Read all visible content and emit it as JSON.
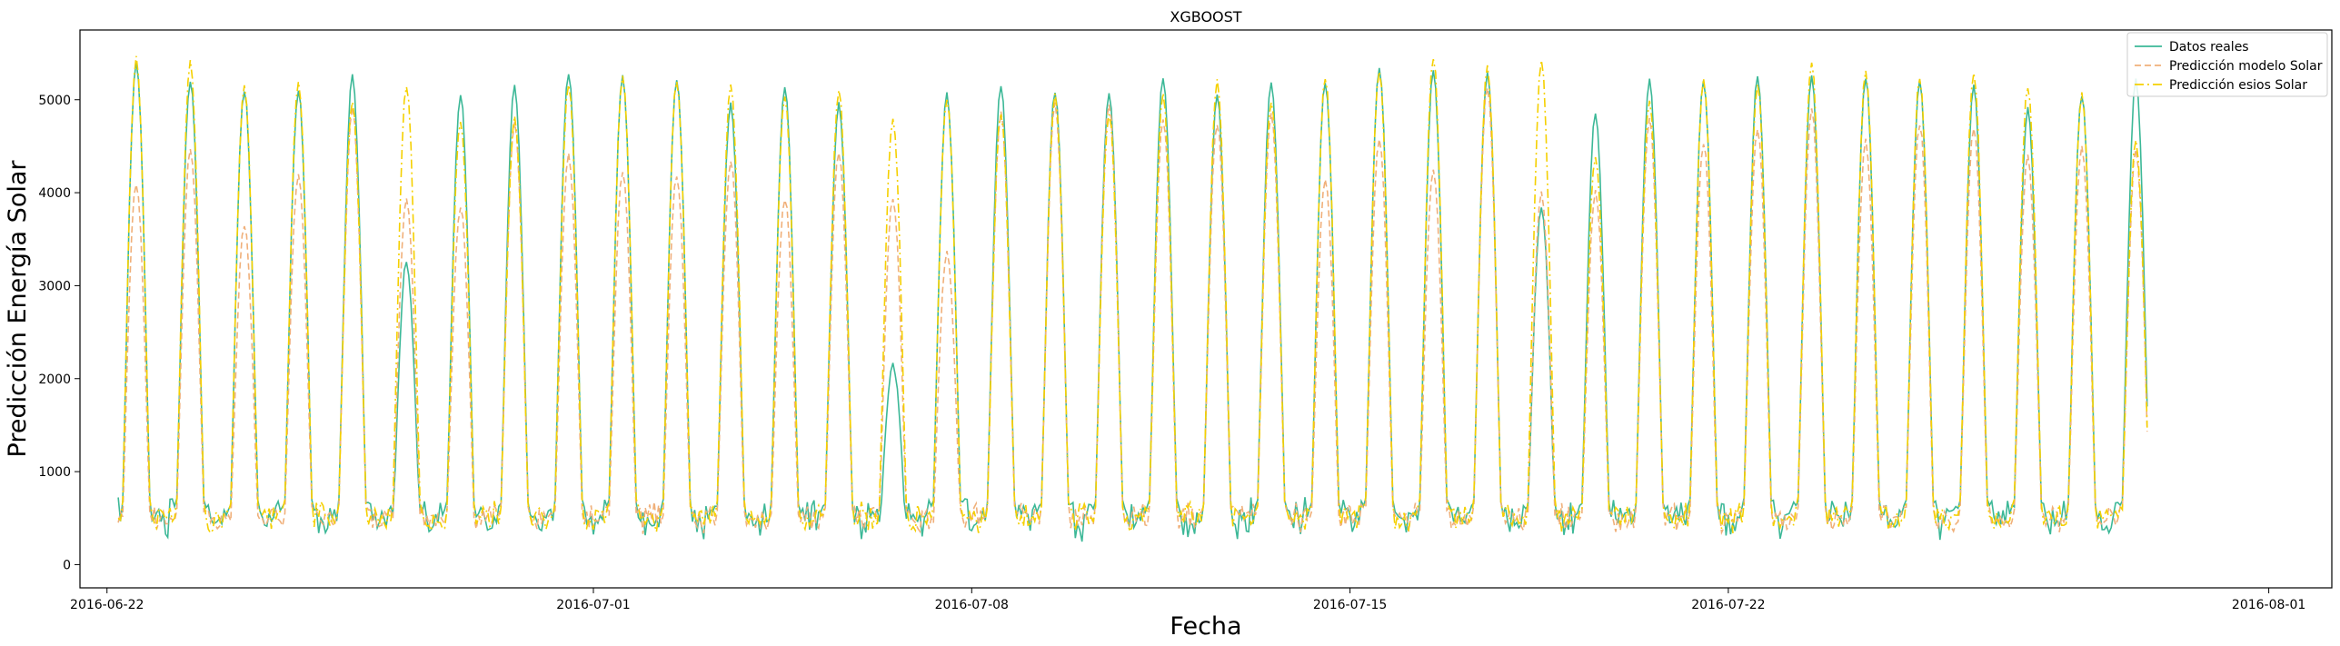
{
  "chart_data": {
    "type": "line",
    "title": "XGBOOST",
    "xlabel": "Fecha",
    "ylabel": "Predicción Energía Solar",
    "x_start": "2016-06-22",
    "x_end": "2016-08-01",
    "xlim": [
      "2016-06-21 12:00",
      "2016-08-02 04:00"
    ],
    "ylim": [
      -250,
      5750
    ],
    "x_ticks": [
      "2016-06-22",
      "2016-07-01",
      "2016-07-08",
      "2016-07-15",
      "2016-07-22",
      "2016-08-01"
    ],
    "y_ticks": [
      0,
      1000,
      2000,
      3000,
      4000,
      5000
    ],
    "grid": false,
    "legend_position": "top-right",
    "series": [
      {
        "name": "Datos reales",
        "color": "#3cb897",
        "style": "solid",
        "daily_peaks": [
          5400,
          5200,
          5100,
          5100,
          5250,
          3250,
          5050,
          5150,
          5300,
          5250,
          5200,
          4950,
          5150,
          4950,
          2150,
          5050,
          5150,
          5100,
          5100,
          5250,
          5050,
          5200,
          5200,
          5350,
          5300,
          5300,
          3850,
          4850,
          5200,
          5200,
          5250,
          5250,
          5250,
          5200,
          5150,
          4900,
          5050,
          5200
        ]
      },
      {
        "name": "Predicción modelo Solar",
        "color": "#f0b07a",
        "style": "dashed",
        "daily_peaks": [
          4100,
          4450,
          3650,
          4200,
          4900,
          3950,
          3850,
          4750,
          4400,
          4200,
          4200,
          4350,
          3950,
          4450,
          3950,
          3350,
          4850,
          4950,
          4950,
          4800,
          4750,
          4850,
          4150,
          4600,
          4250,
          5150,
          4000,
          4000,
          4800,
          4550,
          4700,
          4900,
          4550,
          4750,
          4700,
          4400,
          4500,
          4450
        ]
      },
      {
        "name": "Predicción esios Solar",
        "color": "#f5d000",
        "style": "dashdot",
        "daily_peaks": [
          5450,
          5400,
          5150,
          5200,
          5000,
          5150,
          4750,
          4800,
          5150,
          5250,
          5200,
          5150,
          5050,
          5100,
          4800,
          5000,
          4850,
          5050,
          4850,
          5050,
          5200,
          5000,
          5250,
          5300,
          5450,
          5350,
          5400,
          4400,
          5000,
          5200,
          5150,
          5400,
          5300,
          5250,
          5300,
          5150,
          5050,
          4550
        ]
      }
    ]
  }
}
